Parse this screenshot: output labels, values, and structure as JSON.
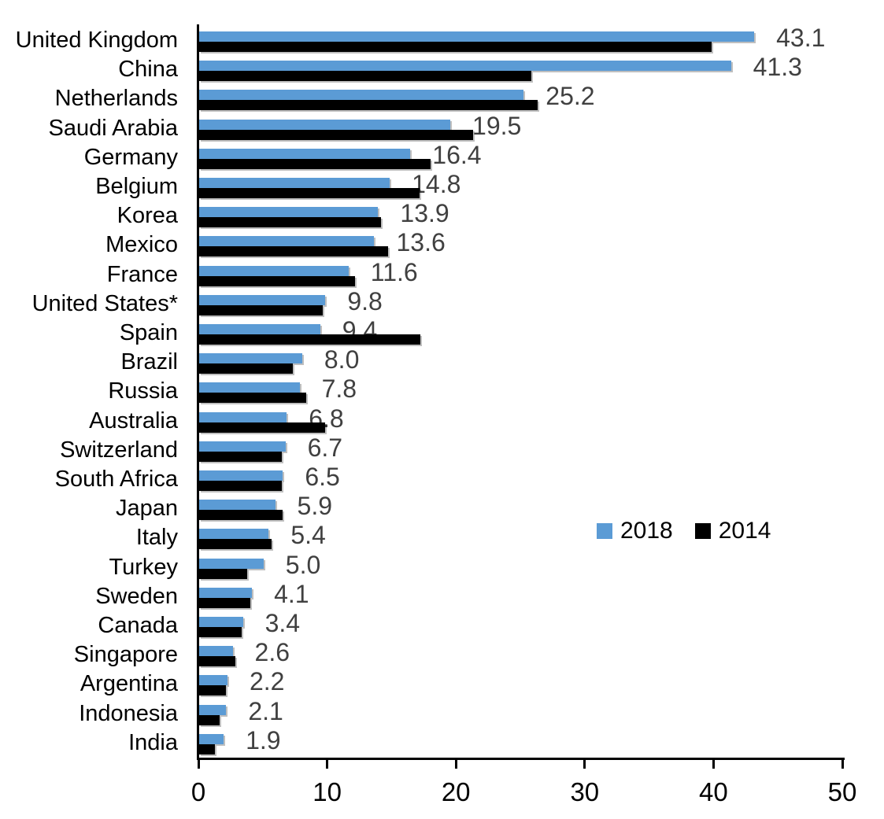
{
  "chart_data": {
    "type": "bar",
    "orientation": "horizontal",
    "title": "",
    "categories": [
      "United Kingdom",
      "China",
      "Netherlands",
      "Saudi Arabia",
      "Germany",
      "Belgium",
      "Korea",
      "Mexico",
      "France",
      "United States*",
      "Spain",
      "Brazil",
      "Russia",
      "Australia",
      "Switzerland",
      "South Africa",
      "Japan",
      "Italy",
      "Turkey",
      "Sweden",
      "Canada",
      "Singapore",
      "Argentina",
      "Indonesia",
      "India"
    ],
    "series": [
      {
        "name": "2018",
        "color": "#5B9BD5",
        "values": [
          43.1,
          41.3,
          25.2,
          19.5,
          16.4,
          14.8,
          13.9,
          13.6,
          11.6,
          9.8,
          9.4,
          8.0,
          7.8,
          6.8,
          6.7,
          6.5,
          5.9,
          5.4,
          5.0,
          4.1,
          3.4,
          2.6,
          2.2,
          2.1,
          1.9
        ]
      },
      {
        "name": "2014",
        "color": "#000000",
        "values": [
          39.8,
          25.8,
          26.3,
          21.3,
          18.0,
          17.1,
          14.1,
          14.7,
          12.1,
          9.6,
          17.2,
          7.3,
          8.3,
          9.8,
          6.4,
          6.4,
          6.5,
          5.6,
          3.7,
          4.0,
          3.3,
          2.8,
          2.1,
          1.6,
          1.2
        ]
      }
    ],
    "data_labels": [
      "43.1",
      "41.3",
      "25.2",
      "19.5",
      "16.4",
      "14.8",
      "13.9",
      "13.6",
      "11.6",
      "9.8",
      "9.4",
      "8.0",
      "7.8",
      "6.8",
      "6.7",
      "6.5",
      "5.9",
      "5.4",
      "5.0",
      "4.1",
      "3.4",
      "2.6",
      "2.2",
      "2.1",
      "1.9"
    ],
    "data_label_series": "2018",
    "data_label_color": "#404040",
    "xlabel": "",
    "ylabel": "",
    "xlim": [
      0,
      50
    ],
    "x_ticks": [
      "0",
      "10",
      "20",
      "30",
      "40",
      "50"
    ],
    "grid": "off",
    "legend": {
      "position": "middle-right",
      "items": [
        {
          "label": "2018",
          "color": "#5B9BD5"
        },
        {
          "label": "2014",
          "color": "#000000"
        }
      ]
    },
    "axis_color": "#000000",
    "background": "#FFFFFF"
  }
}
